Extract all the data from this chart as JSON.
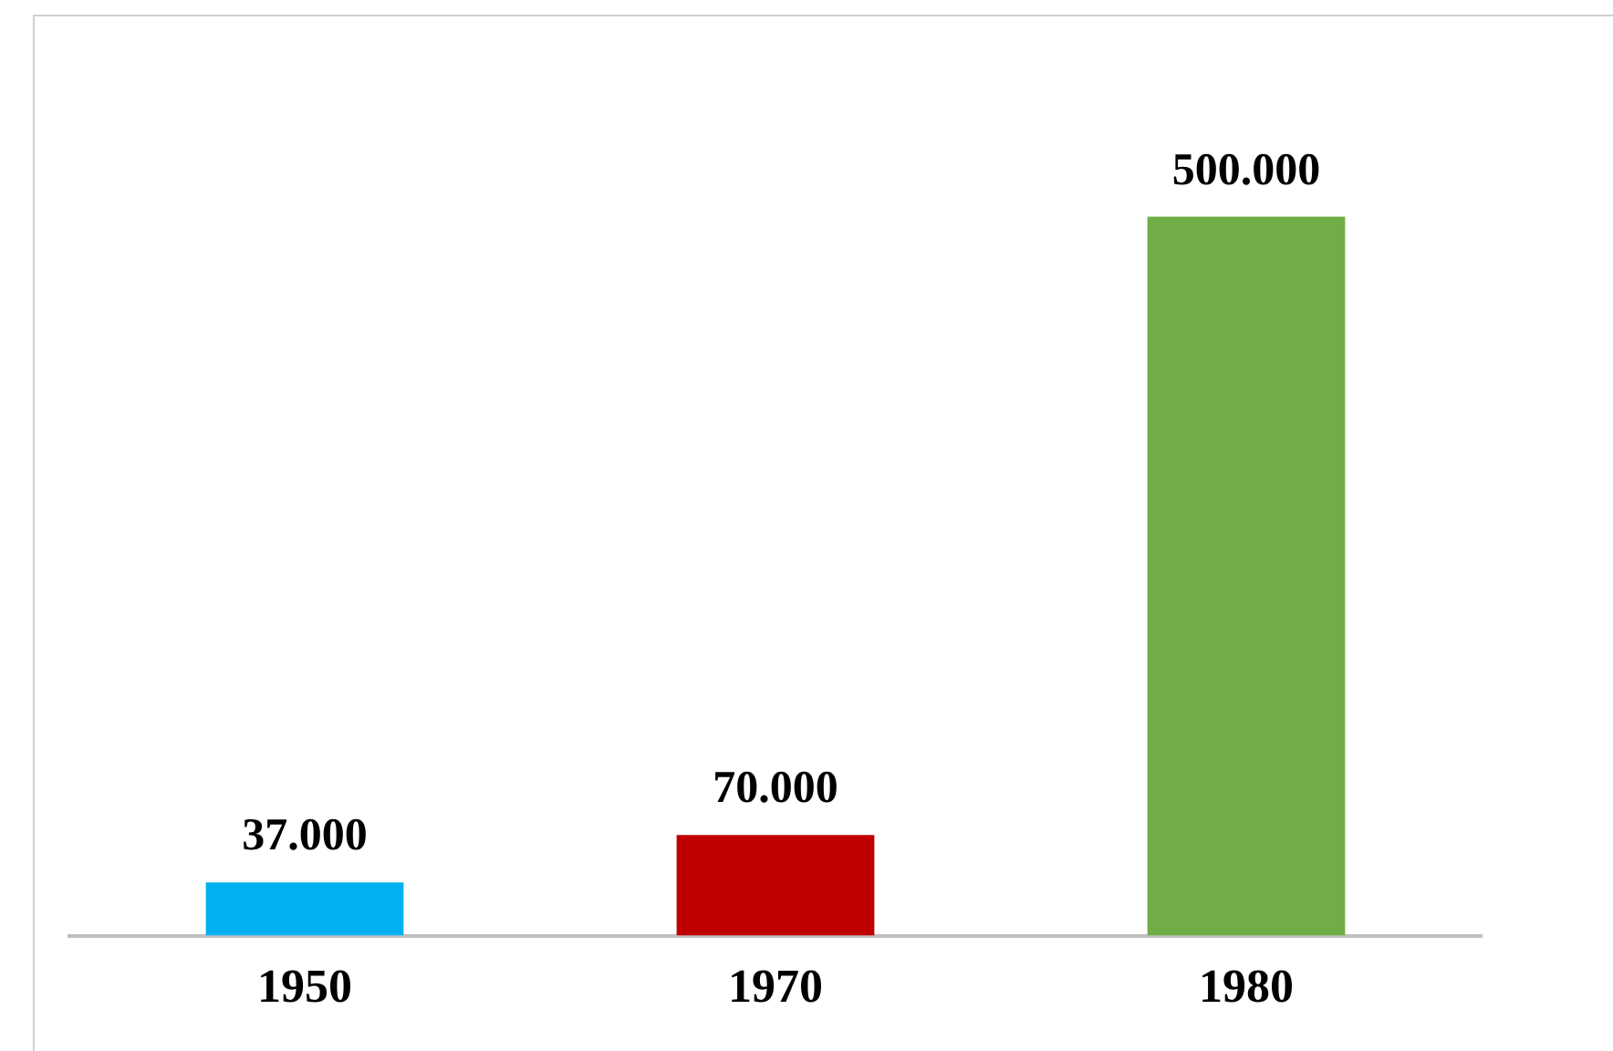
{
  "chart_data": {
    "type": "bar",
    "categories": [
      "1950",
      "1970",
      "1980"
    ],
    "values": [
      37000,
      70000,
      500000
    ],
    "colors": [
      "#00b0f0",
      "#c00000",
      "#70ad47"
    ],
    "value_labels": [
      "37.000",
      "70.000",
      "500.000"
    ],
    "grid": false,
    "legend": false
  }
}
